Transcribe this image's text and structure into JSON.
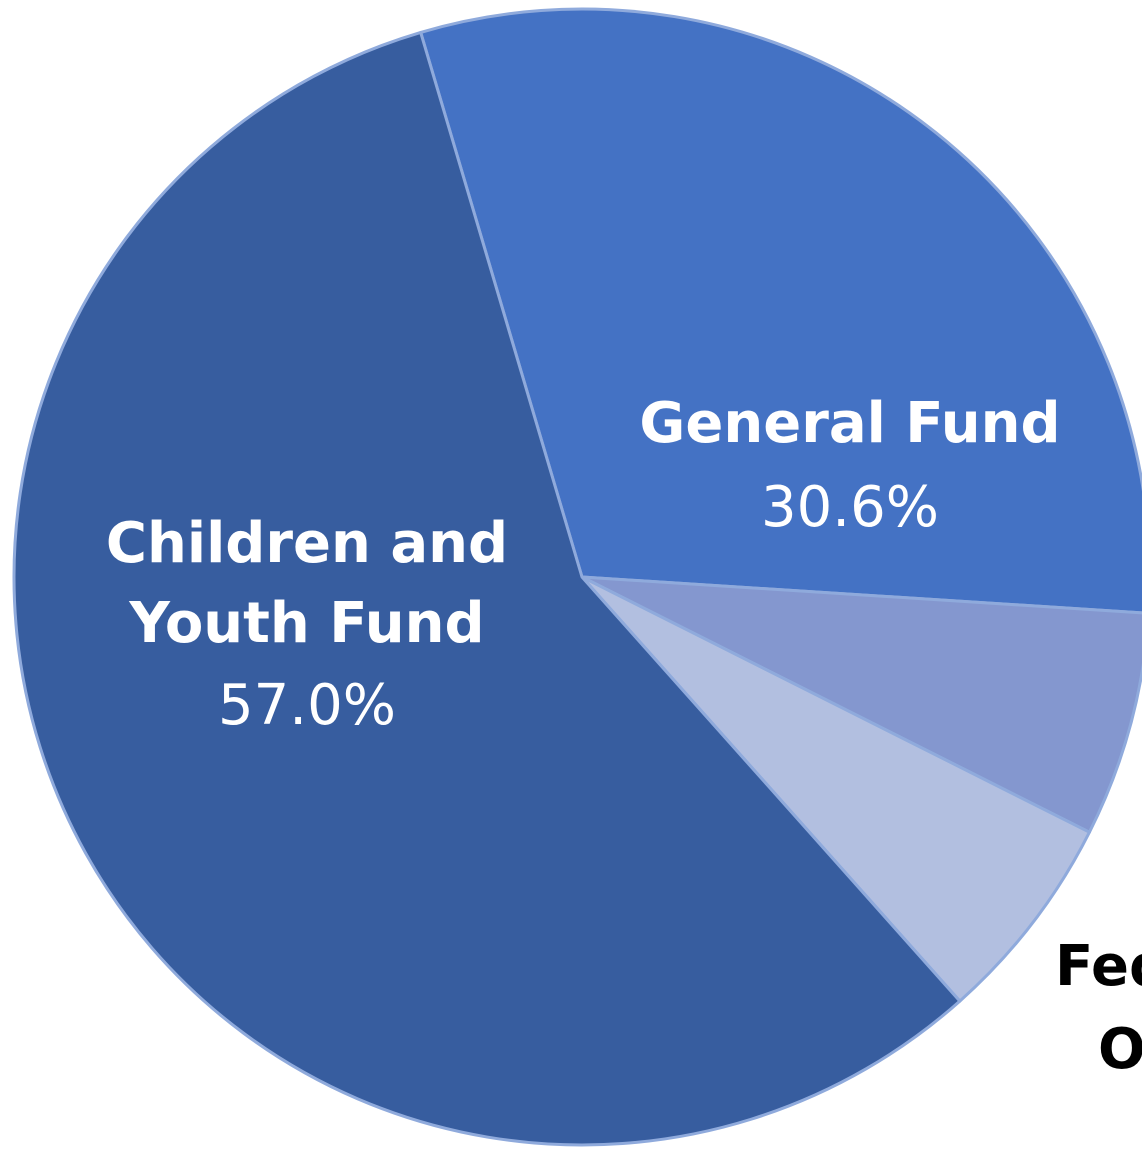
{
  "chart_data": {
    "type": "pie",
    "title": "",
    "slices": [
      {
        "label": "General Fund",
        "value": 30.6,
        "display_value": "30.6%",
        "color": "#4472c4",
        "label_color": "#ffffff"
      },
      {
        "label": "",
        "value": 6.4,
        "display_value": "",
        "color": "#8497cf",
        "label_color": "#000000"
      },
      {
        "label": "Federal and Other",
        "value": 6.0,
        "display_value": "",
        "color": "#b2bfe0",
        "label_color": "#000000"
      },
      {
        "label": "Children and Youth Fund",
        "value": 57.0,
        "display_value": "57.0%",
        "color": "#375d9f",
        "label_color": "#ffffff"
      }
    ],
    "label_text": {
      "general_line1": "General Fund",
      "general_pct": "30.6%",
      "children_line1": "Children and",
      "children_line2": "Youth Fund",
      "children_pct": "57.0%",
      "federal_line1": "Federal and",
      "federal_line2": "Other"
    },
    "slice_border_color": "#8faadc",
    "legend": "none"
  }
}
